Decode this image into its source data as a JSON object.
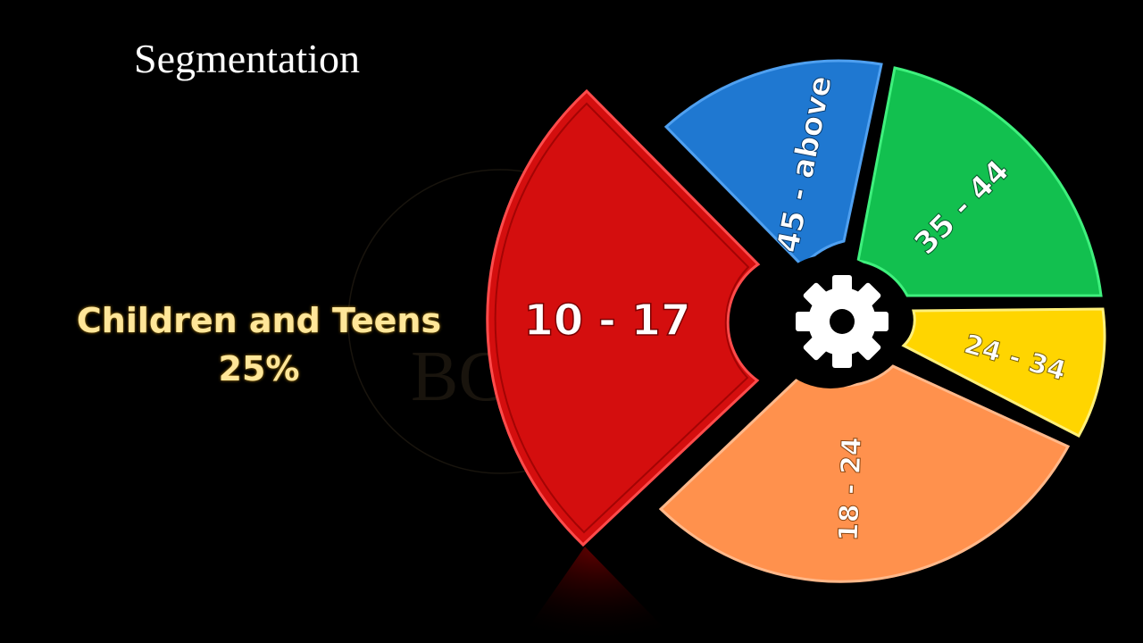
{
  "title": "Segmentation",
  "highlight": {
    "heading": "Children and Teens",
    "percent": "25%",
    "color": "#ffe699"
  },
  "segments": [
    {
      "label": "10 - 17",
      "color": "#d40e0e",
      "icon": "none"
    },
    {
      "label": "45 - above",
      "color": "#1f78d1"
    },
    {
      "label": "35 - 44",
      "color": "#12c04f"
    },
    {
      "label": "24 - 34",
      "color": "#ffd500"
    },
    {
      "label": "18 - 24",
      "color": "#ff914d"
    }
  ],
  "center_icon": "gear-icon",
  "watermark": "BC"
}
